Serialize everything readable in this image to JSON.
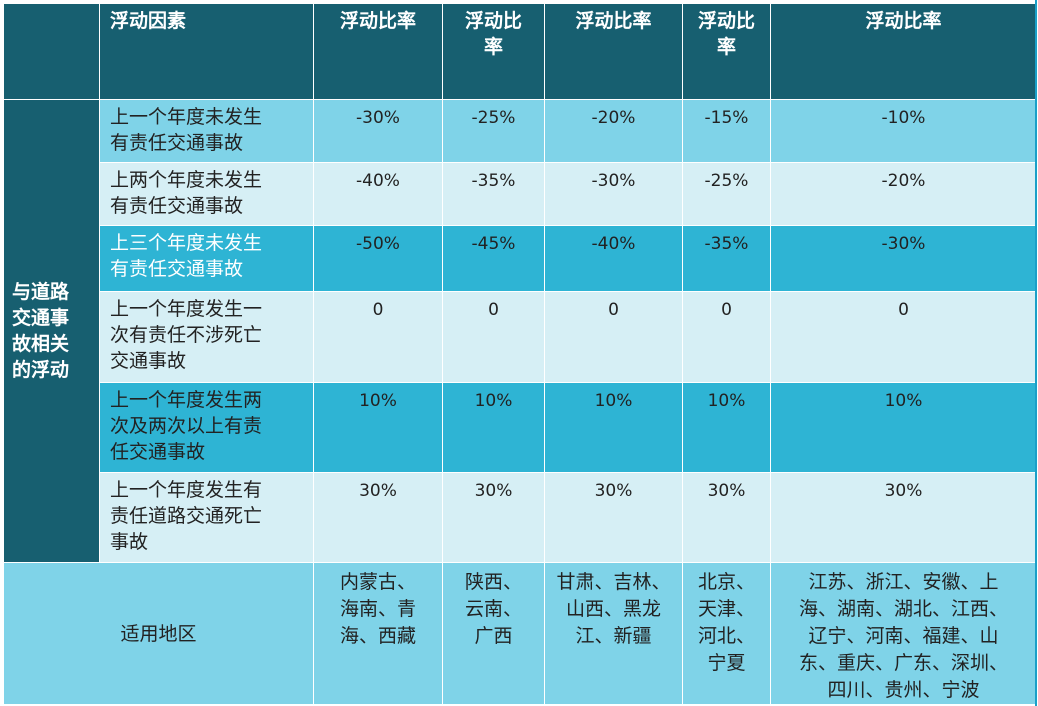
{
  "header": {
    "factor": "浮动因素",
    "col1": "浮动比率",
    "col2": "浮动比\n率",
    "col3": "浮动比率",
    "col4": "浮动比\n率",
    "col5": "浮动比率"
  },
  "side_label": "与道路\n交通事\n故相关\n的浮动",
  "rows": [
    {
      "factor": "上一个年度未发生\n有责任交通事故",
      "v": [
        "-30%",
        "-25%",
        "-20%",
        "-15%",
        "-10%"
      ]
    },
    {
      "factor": "上两个年度未发生\n有责任交通事故",
      "v": [
        "-40%",
        "-35%",
        "-30%",
        "-25%",
        "-20%"
      ]
    },
    {
      "factor": "上三个年度未发生\n有责任交通事故",
      "v": [
        "-50%",
        "-45%",
        "-40%",
        "-35%",
        "-30%"
      ]
    },
    {
      "factor": "上一个年度发生一\n次有责任不涉死亡\n交通事故",
      "v": [
        "0",
        "0",
        "0",
        "0",
        "0"
      ]
    },
    {
      "factor": "上一个年度发生两\n次及两次以上有责\n任交通事故",
      "v": [
        "10%",
        "10%",
        "10%",
        "10%",
        "10%"
      ]
    },
    {
      "factor": "上一个年度发生有\n责任道路交通死亡\n事故",
      "v": [
        "30%",
        "30%",
        "30%",
        "30%",
        "30%"
      ]
    }
  ],
  "region": {
    "label": "适用地区",
    "c1": "内蒙古、\n海南、青\n海、西藏",
    "c2": "陕西、\n云南、\n广西",
    "c3": "甘肃、吉林、\n山西、黑龙\n江、新疆",
    "c4": "北京、\n天津、\n河北、\n宁夏",
    "c5": "江苏、浙江、安徽、上\n海、湖南、湖北、江西、\n辽宁、河南、福建、山\n东、重庆、广东、深圳、\n四川、贵州、宁波"
  },
  "colors": {
    "header": "#175f70",
    "dark_row": "#2eb4d4",
    "mid_row": "#7fd3e8",
    "light_row": "#d6eff5"
  }
}
